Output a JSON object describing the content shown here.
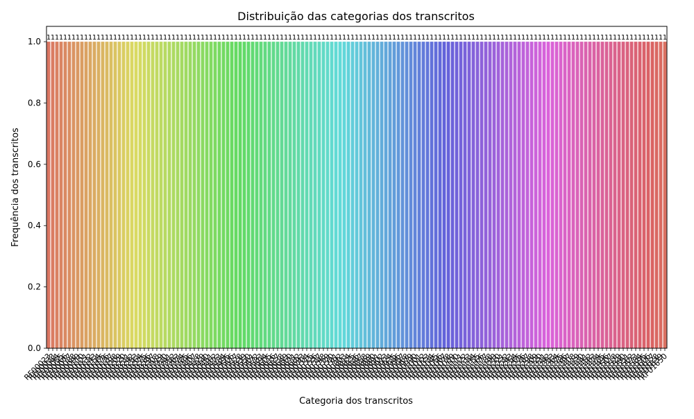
{
  "chart_data": {
    "type": "bar",
    "title": "Distribuição das categorias dos transcritos",
    "xlabel": "Categoria dos transcritos",
    "ylabel": "Frequência dos transcritos",
    "ylim": [
      0,
      1.05
    ],
    "yticks": [
      "0.0",
      "0.2",
      "0.4",
      "0.6",
      "0.8",
      "1.0"
    ],
    "categories": [
      "RF00023",
      "RF00033",
      "RF00044",
      "RF00055",
      "RF00066",
      "RF00077",
      "RF00088",
      "RF00099",
      "RF00110",
      "RF00121",
      "RF00132",
      "RF00143",
      "RF00154",
      "RF00165",
      "RF00176",
      "RF00187",
      "RF00198",
      "RF00209",
      "RF00220",
      "RF00231",
      "RF00242",
      "RF00253",
      "RF00264",
      "RF00275",
      "RF00286",
      "RF00297",
      "RF00308",
      "RF00319",
      "RF00330",
      "RF00341",
      "RF00352",
      "RF00363",
      "RF00374",
      "RF00385",
      "RF00396",
      "RF00407",
      "RF00418",
      "RF00429",
      "RF00440",
      "RF00451",
      "RF00462",
      "RF00473",
      "RF00484",
      "RF00495",
      "RF00506",
      "RF00517",
      "RF00528",
      "RF00539",
      "RF00550",
      "RF00561",
      "RF00572",
      "RF00583",
      "RF00594",
      "RF00605",
      "RF00616",
      "RF00627",
      "RF00638",
      "RF00649",
      "RF00660",
      "RF00671",
      "RF00682",
      "RF00693",
      "RF00704",
      "RF00715",
      "RF00726",
      "RF00737",
      "RF00748",
      "RF00759",
      "RF00770",
      "RF00781",
      "RF00792",
      "RF00803",
      "RF00814",
      "RF00825",
      "RF00836",
      "RF00847",
      "RF00858",
      "RF00869",
      "RF00880",
      "RF00891",
      "RF00902",
      "RF00913",
      "RF00924",
      "RF00935",
      "RF00946",
      "RF00957",
      "RF00968",
      "RF00979",
      "RF00990",
      "RF01001",
      "RF01012",
      "RF01023",
      "RF01034",
      "RF01045",
      "RF01056",
      "RF01067",
      "RF01078",
      "RF01089",
      "RF01100",
      "RF01111",
      "RF01122",
      "RF01133",
      "RF01144",
      "RF01155",
      "RF01166",
      "RF01177",
      "RF01188",
      "RF01199",
      "RF01210",
      "RF01221",
      "RF01232",
      "RF01243",
      "RF01254",
      "RF01265",
      "RF01276",
      "RF01287",
      "RF01298",
      "RF01309",
      "RF01320",
      "RF01331",
      "RF01342",
      "RF01353",
      "RF01364",
      "RF01375",
      "RF01386",
      "RF01397",
      "RF01408",
      "RF01419",
      "RF01430",
      "RF01441",
      "RF01452",
      "RF01463",
      "RF01474",
      "RF01485",
      "RF01496",
      "RF01507",
      "RF01518",
      "RF01529",
      "RF01540",
      "RF01551",
      "RF01562",
      "RF01573",
      "RF01584",
      "RF01595",
      "RF01606",
      "RF01617",
      "RF01628",
      "RF01639",
      "RF01650"
    ],
    "value": 1,
    "value_label": "1",
    "grid": false,
    "legend": "none"
  }
}
